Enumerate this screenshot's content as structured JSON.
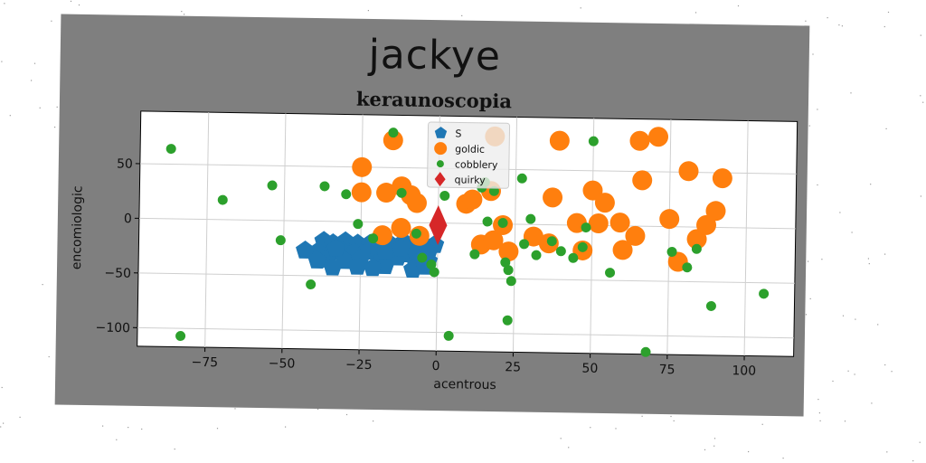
{
  "header": {
    "title": "jackye",
    "subtitle": "keraunoscopia"
  },
  "chart_data": {
    "type": "scatter",
    "title": "keraunoscopia",
    "xlabel": "acentrous",
    "ylabel": "encomiologic",
    "xlim": [
      -97,
      116
    ],
    "ylim": [
      -117,
      98
    ],
    "xticks": [
      -75,
      -50,
      -25,
      0,
      25,
      50,
      75,
      100
    ],
    "yticks": [
      -100,
      -50,
      0,
      50
    ],
    "xtick_labels": [
      "−75",
      "−50",
      "−25",
      "0",
      "25",
      "50",
      "75",
      "100"
    ],
    "ytick_labels": [
      "−100",
      "−50",
      "0",
      "50"
    ],
    "grid": true,
    "legend_position": "top-center",
    "series": [
      {
        "name": "S",
        "marker": "pentagon",
        "color": "#1f77b4",
        "points": [
          [
            -37,
            -18
          ],
          [
            -34,
            -20
          ],
          [
            -30,
            -18
          ],
          [
            -26,
            -20
          ],
          [
            -22,
            -20
          ],
          [
            -19,
            -19
          ],
          [
            -15,
            -21
          ],
          [
            -11,
            -18
          ],
          [
            -8,
            -20
          ],
          [
            -5,
            -19
          ],
          [
            -1,
            -20
          ],
          [
            -39,
            -28
          ],
          [
            -35,
            -30
          ],
          [
            -31,
            -27
          ],
          [
            -27,
            -28
          ],
          [
            -23,
            -27
          ],
          [
            -19,
            -29
          ],
          [
            -15,
            -28
          ],
          [
            -11,
            -29
          ],
          [
            -7,
            -28
          ],
          [
            -3,
            -27
          ],
          [
            -43,
            -27
          ],
          [
            -36,
            -35
          ],
          [
            -30,
            -36
          ],
          [
            -25,
            -34
          ],
          [
            -18,
            -34
          ],
          [
            -13,
            -32
          ],
          [
            -7,
            -37
          ],
          [
            -3,
            -35
          ],
          [
            -34,
            -42
          ],
          [
            -26,
            -41
          ],
          [
            -17,
            -40
          ],
          [
            -8,
            -43
          ],
          [
            -4,
            -40
          ],
          [
            -39,
            -36
          ],
          [
            -21,
            -42
          ],
          [
            -33,
            -25
          ],
          [
            -17,
            -27
          ],
          [
            -12,
            -24
          ]
        ]
      },
      {
        "name": "goldic",
        "marker": "circle",
        "color": "#ff7f0e",
        "points": [
          [
            -15,
            75
          ],
          [
            -25,
            50
          ],
          [
            -25,
            27
          ],
          [
            -17,
            27
          ],
          [
            -12,
            33
          ],
          [
            -9,
            25
          ],
          [
            -7,
            18
          ],
          [
            -12,
            -5
          ],
          [
            -18,
            -12
          ],
          [
            -6,
            -12
          ],
          [
            9,
            18
          ],
          [
            11,
            22
          ],
          [
            14,
            -19
          ],
          [
            18,
            -15
          ],
          [
            18,
            80
          ],
          [
            17,
            30
          ],
          [
            21,
            -1
          ],
          [
            23,
            -25
          ],
          [
            31,
            -11
          ],
          [
            36,
            -17
          ],
          [
            37,
            25
          ],
          [
            39,
            77
          ],
          [
            45,
            2
          ],
          [
            47,
            -23
          ],
          [
            50,
            32
          ],
          [
            52,
            2
          ],
          [
            54,
            21
          ],
          [
            59,
            3
          ],
          [
            60,
            -22
          ],
          [
            64,
            -9
          ],
          [
            65,
            78
          ],
          [
            66,
            42
          ],
          [
            71,
            82
          ],
          [
            75,
            7
          ],
          [
            78,
            -32
          ],
          [
            81,
            51
          ],
          [
            84,
            -11
          ],
          [
            87,
            2
          ],
          [
            90,
            15
          ],
          [
            92,
            45
          ]
        ]
      },
      {
        "name": "cobblery",
        "marker": "dot",
        "color": "#2ca02c",
        "points": [
          [
            -87,
            64
          ],
          [
            -83,
            -107
          ],
          [
            -70,
            18
          ],
          [
            -54,
            32
          ],
          [
            -51,
            -18
          ],
          [
            -41,
            -58
          ],
          [
            -37,
            32
          ],
          [
            -30,
            25
          ],
          [
            -26,
            -2
          ],
          [
            -21,
            -15
          ],
          [
            -15,
            82
          ],
          [
            -12,
            27
          ],
          [
            -7,
            -10
          ],
          [
            -5,
            -32
          ],
          [
            -2,
            -38
          ],
          [
            -1,
            -45
          ],
          [
            2,
            25
          ],
          [
            4,
            -103
          ],
          [
            12,
            -28
          ],
          [
            14,
            33
          ],
          [
            15,
            38
          ],
          [
            16,
            2
          ],
          [
            18,
            30
          ],
          [
            21,
            1
          ],
          [
            22,
            -35
          ],
          [
            23,
            -42
          ],
          [
            24,
            -52
          ],
          [
            23,
            -88
          ],
          [
            27,
            42
          ],
          [
            28,
            -18
          ],
          [
            30,
            5
          ],
          [
            32,
            -28
          ],
          [
            37,
            -15
          ],
          [
            40,
            -24
          ],
          [
            44,
            -30
          ],
          [
            47,
            -20
          ],
          [
            48,
            -2
          ],
          [
            50,
            77
          ],
          [
            56,
            -43
          ],
          [
            68,
            -115
          ],
          [
            76,
            -23
          ],
          [
            81,
            -37
          ],
          [
            84,
            -20
          ],
          [
            89,
            -72
          ],
          [
            106,
            -60
          ]
        ]
      },
      {
        "name": "quirky",
        "marker": "diamond",
        "color": "#d62728",
        "points": [
          [
            0,
            -2
          ]
        ]
      }
    ]
  },
  "colors": {
    "card_background": "#7f7f7f",
    "plot_background": "#ffffff",
    "grid": "#cfcfcf"
  }
}
